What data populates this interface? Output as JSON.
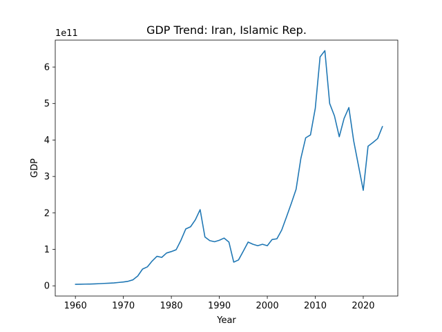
{
  "chart_data": {
    "type": "line",
    "title": "GDP Trend: Iran, Islamic Rep.",
    "xlabel": "Year",
    "ylabel": "GDP",
    "y_offset_label": "1e11",
    "xlim": [
      1955.8,
      2027.2
    ],
    "ylim": [
      -28000000000.0,
      674000000000.0
    ],
    "x_ticks": [
      1960,
      1970,
      1980,
      1990,
      2000,
      2010,
      2020
    ],
    "y_ticks": [
      0,
      100000000000.0,
      200000000000.0,
      300000000000.0,
      400000000000.0,
      500000000000.0,
      600000000000.0
    ],
    "y_tick_labels": [
      "0",
      "1",
      "2",
      "3",
      "4",
      "5",
      "6"
    ],
    "grid": false,
    "colors": {
      "line": "#1f77b4"
    },
    "series": [
      {
        "x": [
          1960,
          1961,
          1962,
          1963,
          1964,
          1965,
          1966,
          1967,
          1968,
          1969,
          1970,
          1971,
          1972,
          1973,
          1974,
          1975,
          1976,
          1977,
          1978,
          1979,
          1980,
          1981,
          1982,
          1983,
          1984,
          1985,
          1986,
          1987,
          1988,
          1989,
          1990,
          1991,
          1992,
          1993,
          1994,
          1995,
          1996,
          1997,
          1998,
          1999,
          2000,
          2001,
          2002,
          2003,
          2004,
          2005,
          2006,
          2007,
          2008,
          2009,
          2010,
          2011,
          2012,
          2013,
          2014,
          2015,
          2016,
          2017,
          2018,
          2019,
          2020,
          2021,
          2022,
          2023,
          2024
        ],
        "y": [
          4200000000.0,
          4400000000.0,
          4700000000.0,
          4900000000.0,
          5300000000.0,
          5900000000.0,
          6600000000.0,
          7200000000.0,
          8000000000.0,
          9200000000.0,
          10500000000.0,
          12500000000.0,
          16500000000.0,
          27000000000.0,
          46000000000.0,
          52000000000.0,
          68000000000.0,
          81000000000.0,
          78000000000.0,
          90000000000.0,
          94000000000.0,
          99000000000.0,
          125000000000.0,
          156000000000.0,
          162000000000.0,
          181000000000.0,
          209000000000.0,
          134000000000.0,
          124000000000.0,
          121000000000.0,
          125000000000.0,
          131000000000.0,
          120000000000.0,
          65000000000.0,
          71000000000.0,
          95000000000.0,
          120000000000.0,
          114000000000.0,
          110000000000.0,
          114000000000.0,
          110000000000.0,
          127000000000.0,
          129000000000.0,
          153000000000.0,
          189000000000.0,
          226000000000.0,
          265000000000.0,
          350000000000.0,
          406000000000.0,
          414000000000.0,
          487000000000.0,
          628000000000.0,
          645000000000.0,
          500000000000.0,
          466000000000.0,
          409000000000.0,
          459000000000.0,
          489000000000.0,
          398000000000.0,
          330000000000.0,
          262000000000.0,
          383000000000.0,
          393000000000.0,
          404000000000.0,
          437000000000.0
        ]
      }
    ]
  }
}
